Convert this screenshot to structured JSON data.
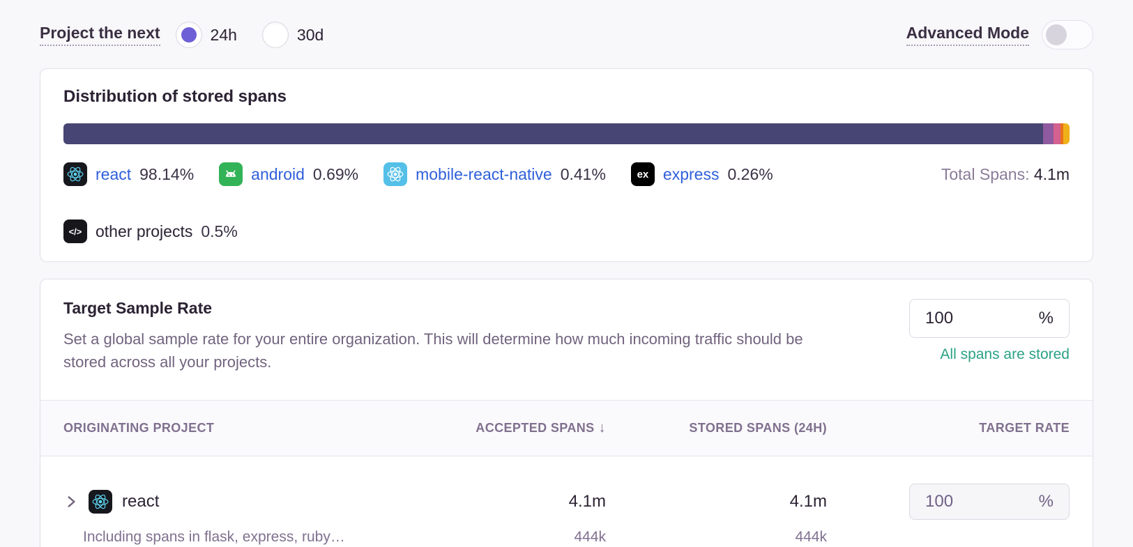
{
  "header": {
    "period_label": "Project the next",
    "options": [
      {
        "label": "24h"
      },
      {
        "label": "30d"
      }
    ],
    "selected_option": "24h",
    "advanced_mode_label": "Advanced Mode",
    "advanced_mode_on": false
  },
  "colors": {
    "accent_purple": "#6d5fd6",
    "link_blue": "#2f5fd9",
    "status_green": "#2ba185",
    "bar_primary": "#474573",
    "page_bg": "#f8f7fa"
  },
  "distribution": {
    "title": "Distribution of stored spans",
    "total_label": "Total Spans:",
    "total_value": "4.1m",
    "segments": [
      {
        "project": "react",
        "share_pct": 98.14,
        "bar_width_pct": 97.35,
        "color": "#474573"
      },
      {
        "project": "android",
        "share_pct": 0.69,
        "bar_width_pct": 1.05,
        "color": "#8f5a9f"
      },
      {
        "project": "mobile-react-native",
        "share_pct": 0.41,
        "bar_width_pct": 0.7,
        "color": "#d4618f"
      },
      {
        "project": "express",
        "share_pct": 0.26,
        "bar_width_pct": 0.28,
        "color": "#e8731a"
      },
      {
        "project": "other projects",
        "share_pct": 0.5,
        "bar_width_pct": 0.62,
        "color": "#efb118"
      }
    ],
    "legend": [
      {
        "project": "react",
        "value": "98.14%",
        "icon": "react-icon",
        "icon_bg": "#16181d",
        "icon_fg": "#5ed3f0"
      },
      {
        "project": "android",
        "value": "0.69%",
        "icon": "android-icon",
        "icon_bg": "#32b357",
        "icon_fg": "#ffffff"
      },
      {
        "project": "mobile-react-native",
        "value": "0.41%",
        "icon": "react-icon",
        "icon_bg": "#54c0e8",
        "icon_fg": "#ffffff"
      },
      {
        "project": "express",
        "value": "0.26%",
        "icon": "express-icon",
        "icon_bg": "#000000",
        "icon_label": "ex"
      },
      {
        "project": "other projects",
        "value": "0.5%",
        "icon": "code-icon",
        "icon_bg": "#17171b",
        "icon_label": "</>"
      }
    ]
  },
  "sample_rate": {
    "title": "Target Sample Rate",
    "description": "Set a global sample rate for your entire organization. This will determine how much incoming traffic should be stored across all your projects.",
    "input_value": "100",
    "input_suffix": "%",
    "status": "All spans are stored"
  },
  "table": {
    "headers": {
      "project": "ORIGINATING PROJECT",
      "accepted": "ACCEPTED SPANS",
      "sort_icon": "↓",
      "stored": "STORED SPANS (24H)",
      "rate": "TARGET RATE"
    },
    "rows": [
      {
        "project": "react",
        "icon_bg": "#16181d",
        "icon_fg": "#5ed3f0",
        "accepted": "4.1m",
        "stored": "4.1m",
        "rate_value": "100",
        "rate_suffix": "%",
        "subtext": "Including spans in flask, express, ruby…",
        "sub_accepted": "444k",
        "sub_stored": "444k"
      }
    ]
  }
}
